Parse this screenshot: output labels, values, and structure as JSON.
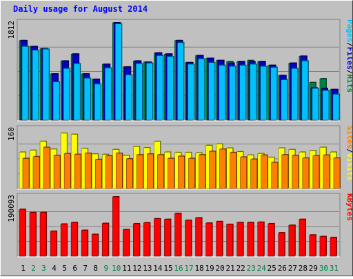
{
  "chart_data": {
    "type": "bar",
    "title": "Daily usage for August 2014",
    "categories": [
      "1",
      "2",
      "3",
      "4",
      "5",
      "6",
      "7",
      "8",
      "9",
      "10",
      "11",
      "12",
      "13",
      "14",
      "15",
      "16",
      "17",
      "18",
      "19",
      "20",
      "21",
      "22",
      "23",
      "24",
      "25",
      "26",
      "27",
      "28",
      "29",
      "30",
      "31"
    ],
    "weekend_days": [
      "2",
      "3",
      "9",
      "10",
      "16",
      "17",
      "23",
      "24",
      "30",
      "31"
    ],
    "panels": [
      {
        "id": "hits",
        "ymax_label": "1812",
        "ymax": 1812,
        "right_labels": [
          "Pages",
          "/",
          "Files",
          "/",
          "Hits"
        ],
        "right_label_colors": [
          "#00c0ff",
          "#000000",
          "#0000c0",
          "#000000",
          "#008040"
        ],
        "series": [
          {
            "name": "Hits",
            "color": "#008040",
            "values": [
              1480,
              1370,
              1330,
              860,
              1100,
              1230,
              860,
              760,
              1040,
              1812,
              990,
              1100,
              1080,
              1250,
              1230,
              1480,
              1070,
              1200,
              1150,
              1110,
              1090,
              1090,
              1110,
              1090,
              1020,
              830,
              1060,
              1190,
              700,
              770,
              570
            ]
          },
          {
            "name": "Files",
            "color": "#0000c0",
            "values": [
              1480,
              1370,
              1330,
              860,
              1100,
              1230,
              860,
              760,
              1040,
              1812,
              990,
              1100,
              1080,
              1250,
              1230,
              1480,
              1070,
              1200,
              1150,
              1110,
              1060,
              1090,
              1090,
              1090,
              1020,
              830,
              1060,
              1190,
              600,
              590,
              570
            ]
          },
          {
            "name": "Pages",
            "color": "#00c0ff",
            "values": [
              1370,
              1300,
              1320,
              710,
              960,
              1050,
              780,
              670,
              970,
              1790,
              840,
              1050,
              1060,
              1200,
              1180,
              1440,
              1040,
              1140,
              1070,
              1020,
              1000,
              1020,
              1040,
              1000,
              980,
              750,
              960,
              1100,
              590,
              550,
              480
            ]
          }
        ]
      },
      {
        "id": "visits",
        "ymax_label": "160",
        "ymax": 160,
        "right_labels": [
          "Sites",
          "/",
          "Visits"
        ],
        "right_label_colors": [
          "#ff8000",
          "#000000",
          "#ffff00"
        ],
        "series": [
          {
            "name": "Visits",
            "color": "#ffff00",
            "values": [
              98,
              103,
              127,
              106,
              149,
              146,
              108,
              93,
              92,
              105,
              89,
              113,
              110,
              127,
              98,
              97,
              97,
              96,
              116,
              120,
              109,
              99,
              90,
              94,
              84,
              109,
              105,
              98,
              102,
              111,
              98
            ]
          },
          {
            "name": "Sites",
            "color": "#ff8000",
            "values": [
              81,
              86,
              111,
              89,
              94,
              92,
              95,
              78,
              88,
              95,
              80,
              91,
              93,
              91,
              81,
              87,
              81,
              91,
              100,
              106,
              97,
              85,
              79,
              90,
              70,
              91,
              89,
              82,
              88,
              90,
              82
            ]
          }
        ]
      },
      {
        "id": "kbytes",
        "ymax_label": "190093",
        "ymax": 190093,
        "right_labels": [
          "KBytes"
        ],
        "right_label_colors": [
          "#ff0000"
        ],
        "series": [
          {
            "name": "KBytes",
            "color": "#ff0000",
            "values": [
              150000,
              140000,
              140000,
              80000,
              103000,
              108000,
              83000,
              70000,
              105000,
              190093,
              85000,
              104000,
              107000,
              120000,
              118000,
              137000,
              115000,
              123000,
              106000,
              111000,
              102000,
              108000,
              108000,
              109000,
              104000,
              75000,
              99000,
              118000,
              68000,
              63000,
              60000
            ]
          }
        ]
      }
    ]
  }
}
